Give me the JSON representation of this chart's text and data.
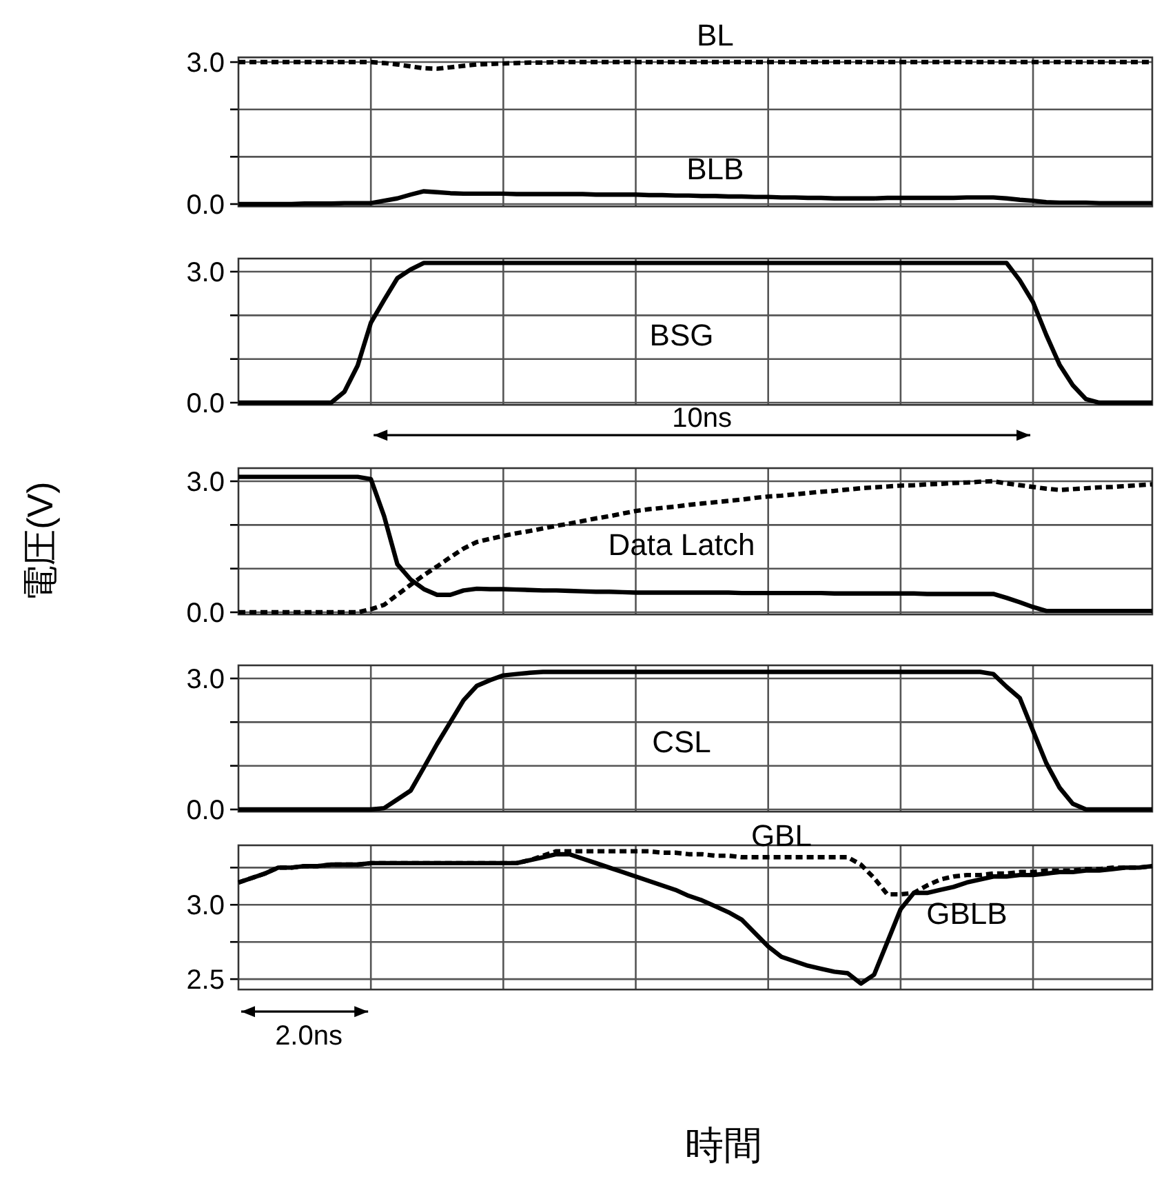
{
  "chart_data": [
    {
      "type": "line",
      "categories": [
        null,
        null,
        null,
        null,
        null,
        null,
        null,
        null,
        null,
        null,
        null,
        null,
        null,
        null,
        null,
        null,
        null,
        null,
        null,
        null,
        null,
        null,
        null,
        null,
        null,
        null,
        null,
        null,
        null,
        null,
        null,
        null,
        null,
        null,
        null,
        null,
        null,
        null,
        null,
        null,
        null,
        null,
        null,
        null,
        null,
        null,
        null,
        null,
        null,
        null,
        null,
        null,
        null,
        null,
        null,
        null,
        null,
        null,
        null,
        null,
        null,
        null,
        null,
        null,
        null,
        null,
        null,
        null,
        null,
        null
      ],
      "ylim": [
        -0.05,
        3.1
      ],
      "yticks": [
        {
          "value": 0,
          "label": "0.0"
        },
        {
          "value": 1,
          "label": null
        },
        {
          "value": 2,
          "label": null
        },
        {
          "value": 3,
          "label": "3.0"
        }
      ],
      "grid": true,
      "tick_labels": "y",
      "series": [
        {
          "name": "BL",
          "color": "#000000",
          "line_style": "dashed",
          "values": [
            3.0,
            3.0,
            3.0,
            3.0,
            3.0,
            3.0,
            3.0,
            3.0,
            3.0,
            3.0,
            3.0,
            2.98,
            2.95,
            2.91,
            2.87,
            2.86,
            2.89,
            2.92,
            2.95,
            2.96,
            2.97,
            2.98,
            2.99,
            2.99,
            3.0,
            3.0,
            3.0,
            3.0,
            3.0,
            3.0,
            3.0,
            3.0,
            3.0,
            3.0,
            3.0,
            3.0,
            3.0,
            3.0,
            3.0,
            3.0,
            3.0,
            3.0,
            3.0,
            3.0,
            3.0,
            3.0,
            3.0,
            3.0,
            3.0,
            3.0,
            3.0,
            3.0,
            3.0,
            3.0,
            3.0,
            3.0,
            3.0,
            3.0,
            3.0,
            3.0,
            3.0,
            3.0,
            3.0,
            3.0,
            3.0,
            3.0,
            3.0,
            3.0,
            3.0,
            3.0
          ]
        },
        {
          "name": "BLB",
          "color": "#000000",
          "line_style": "solid",
          "values": [
            0,
            0,
            0,
            0,
            0,
            0.01,
            0.01,
            0.01,
            0.02,
            0.02,
            0.02,
            0.07,
            0.12,
            0.2,
            0.27,
            0.25,
            0.23,
            0.22,
            0.22,
            0.22,
            0.22,
            0.21,
            0.21,
            0.21,
            0.21,
            0.21,
            0.21,
            0.2,
            0.2,
            0.2,
            0.2,
            0.19,
            0.19,
            0.18,
            0.18,
            0.17,
            0.17,
            0.16,
            0.16,
            0.15,
            0.15,
            0.14,
            0.14,
            0.13,
            0.13,
            0.12,
            0.12,
            0.12,
            0.12,
            0.13,
            0.13,
            0.13,
            0.13,
            0.13,
            0.13,
            0.14,
            0.14,
            0.14,
            0.12,
            0.09,
            0.07,
            0.04,
            0.03,
            0.03,
            0.03,
            0.02,
            0.02,
            0.02,
            0.02,
            0.02
          ]
        }
      ]
    },
    {
      "type": "line",
      "title": "BSG",
      "categories": [
        null,
        null,
        null,
        null,
        null,
        null,
        null,
        null,
        null,
        null,
        null,
        null,
        null,
        null,
        null,
        null,
        null,
        null,
        null,
        null,
        null,
        null,
        null,
        null,
        null,
        null,
        null,
        null,
        null,
        null,
        null,
        null,
        null,
        null,
        null,
        null,
        null,
        null,
        null,
        null,
        null,
        null,
        null,
        null,
        null,
        null,
        null,
        null,
        null,
        null,
        null,
        null,
        null,
        null,
        null,
        null,
        null,
        null,
        null,
        null,
        null,
        null,
        null,
        null,
        null,
        null,
        null,
        null,
        null,
        null
      ],
      "ylim": [
        -0.05,
        3.3
      ],
      "yticks": [
        {
          "value": 0,
          "label": "0.0"
        },
        {
          "value": 1,
          "label": null
        },
        {
          "value": 2,
          "label": null
        },
        {
          "value": 3,
          "label": "3.0"
        }
      ],
      "grid": true,
      "tick_labels": "y",
      "annotations": [
        "10ns"
      ],
      "series": [
        {
          "color": "#000000",
          "line_style": "solid",
          "values": [
            0,
            0,
            0,
            0,
            0,
            0,
            0,
            0,
            0.25,
            0.85,
            1.83,
            2.35,
            2.85,
            3.05,
            3.2,
            3.2,
            3.2,
            3.2,
            3.2,
            3.2,
            3.2,
            3.2,
            3.2,
            3.2,
            3.2,
            3.2,
            3.2,
            3.2,
            3.2,
            3.2,
            3.2,
            3.2,
            3.2,
            3.2,
            3.2,
            3.2,
            3.2,
            3.2,
            3.2,
            3.2,
            3.2,
            3.2,
            3.2,
            3.2,
            3.2,
            3.2,
            3.2,
            3.2,
            3.2,
            3.2,
            3.2,
            3.2,
            3.2,
            3.2,
            3.2,
            3.2,
            3.2,
            3.2,
            3.2,
            2.8,
            2.3,
            1.55,
            0.87,
            0.4,
            0.08,
            0,
            0,
            0,
            0,
            0
          ]
        }
      ]
    },
    {
      "type": "line",
      "title": "Data Latch",
      "ylabel": "電圧(V)",
      "categories": [
        null,
        null,
        null,
        null,
        null,
        null,
        null,
        null,
        null,
        null,
        null,
        null,
        null,
        null,
        null,
        null,
        null,
        null,
        null,
        null,
        null,
        null,
        null,
        null,
        null,
        null,
        null,
        null,
        null,
        null,
        null,
        null,
        null,
        null,
        null,
        null,
        null,
        null,
        null,
        null,
        null,
        null,
        null,
        null,
        null,
        null,
        null,
        null,
        null,
        null,
        null,
        null,
        null,
        null,
        null,
        null,
        null,
        null,
        null,
        null,
        null,
        null,
        null,
        null,
        null,
        null,
        null,
        null,
        null,
        null
      ],
      "ylim": [
        -0.05,
        3.3
      ],
      "yticks": [
        {
          "value": 0,
          "label": "0.0"
        },
        {
          "value": 1,
          "label": null
        },
        {
          "value": 2,
          "label": null
        },
        {
          "value": 3,
          "label": "3.0"
        }
      ],
      "grid": true,
      "tick_labels": "y",
      "series": [
        {
          "color": "#000000",
          "line_style": "solid",
          "values": [
            3.1,
            3.1,
            3.1,
            3.1,
            3.1,
            3.1,
            3.1,
            3.1,
            3.1,
            3.1,
            3.05,
            2.2,
            1.1,
            0.75,
            0.53,
            0.4,
            0.4,
            0.5,
            0.54,
            0.53,
            0.53,
            0.52,
            0.51,
            0.5,
            0.5,
            0.49,
            0.48,
            0.47,
            0.47,
            0.46,
            0.45,
            0.45,
            0.45,
            0.45,
            0.45,
            0.45,
            0.45,
            0.45,
            0.44,
            0.44,
            0.44,
            0.44,
            0.44,
            0.44,
            0.44,
            0.43,
            0.43,
            0.43,
            0.43,
            0.43,
            0.43,
            0.43,
            0.42,
            0.42,
            0.42,
            0.42,
            0.42,
            0.42,
            0.33,
            0.23,
            0.12,
            0.03,
            0.03,
            0.03,
            0.03,
            0.03,
            0.03,
            0.03,
            0.03,
            0.03
          ]
        },
        {
          "color": "#000000",
          "line_style": "dashed",
          "values": [
            0,
            0,
            0,
            0,
            0,
            0,
            0,
            0,
            0,
            0,
            0.07,
            0.17,
            0.4,
            0.63,
            0.85,
            1.05,
            1.26,
            1.46,
            1.61,
            1.68,
            1.75,
            1.81,
            1.86,
            1.92,
            1.98,
            2.03,
            2.09,
            2.15,
            2.2,
            2.26,
            2.32,
            2.36,
            2.39,
            2.42,
            2.46,
            2.49,
            2.52,
            2.55,
            2.58,
            2.62,
            2.65,
            2.67,
            2.7,
            2.73,
            2.76,
            2.78,
            2.81,
            2.84,
            2.86,
            2.88,
            2.9,
            2.91,
            2.93,
            2.94,
            2.96,
            2.97,
            2.99,
            3.0,
            2.95,
            2.91,
            2.87,
            2.83,
            2.8,
            2.82,
            2.84,
            2.86,
            2.87,
            2.89,
            2.91,
            2.93
          ]
        }
      ]
    },
    {
      "type": "line",
      "title": "CSL",
      "categories": [
        null,
        null,
        null,
        null,
        null,
        null,
        null,
        null,
        null,
        null,
        null,
        null,
        null,
        null,
        null,
        null,
        null,
        null,
        null,
        null,
        null,
        null,
        null,
        null,
        null,
        null,
        null,
        null,
        null,
        null,
        null,
        null,
        null,
        null,
        null,
        null,
        null,
        null,
        null,
        null,
        null,
        null,
        null,
        null,
        null,
        null,
        null,
        null,
        null,
        null,
        null,
        null,
        null,
        null,
        null,
        null,
        null,
        null,
        null,
        null,
        null,
        null,
        null,
        null,
        null,
        null,
        null,
        null,
        null,
        null
      ],
      "ylim": [
        -0.05,
        3.3
      ],
      "yticks": [
        {
          "value": 0,
          "label": "0.0"
        },
        {
          "value": 1,
          "label": null
        },
        {
          "value": 2,
          "label": null
        },
        {
          "value": 3,
          "label": "3.0"
        }
      ],
      "grid": true,
      "tick_labels": "y",
      "series": [
        {
          "color": "#000000",
          "line_style": "solid",
          "values": [
            0,
            0,
            0,
            0,
            0,
            0,
            0,
            0,
            0,
            0,
            0,
            0.03,
            0.23,
            0.43,
            0.96,
            1.5,
            2.0,
            2.5,
            2.83,
            2.96,
            3.07,
            3.1,
            3.13,
            3.15,
            3.15,
            3.15,
            3.15,
            3.15,
            3.15,
            3.15,
            3.15,
            3.15,
            3.15,
            3.15,
            3.15,
            3.15,
            3.15,
            3.15,
            3.15,
            3.15,
            3.15,
            3.15,
            3.15,
            3.15,
            3.15,
            3.15,
            3.15,
            3.15,
            3.15,
            3.15,
            3.15,
            3.15,
            3.15,
            3.15,
            3.15,
            3.15,
            3.15,
            3.1,
            2.81,
            2.55,
            1.8,
            1.06,
            0.5,
            0.13,
            0,
            0,
            0,
            0,
            0,
            0
          ]
        }
      ]
    },
    {
      "type": "line",
      "xlabel": "時間",
      "categories": [
        null,
        null,
        null,
        null,
        null,
        null,
        null,
        null,
        null,
        null,
        null,
        null,
        null,
        null,
        null,
        null,
        null,
        null,
        null,
        null,
        null,
        null,
        null,
        null,
        null,
        null,
        null,
        null,
        null,
        null,
        null,
        null,
        null,
        null,
        null,
        null,
        null,
        null,
        null,
        null,
        null,
        null,
        null,
        null,
        null,
        null,
        null,
        null,
        null,
        null,
        null,
        null,
        null,
        null,
        null,
        null,
        null,
        null,
        null,
        null,
        null,
        null,
        null,
        null,
        null,
        null,
        null,
        null,
        null,
        null
      ],
      "ylim": [
        2.43,
        3.4
      ],
      "yticks": [
        {
          "value": 2.5,
          "label": "2.5"
        },
        {
          "value": 2.75,
          "label": null
        },
        {
          "value": 3,
          "label": "3.0"
        },
        {
          "value": 3.25,
          "label": null
        }
      ],
      "grid": true,
      "tick_labels": "y",
      "annotations": [
        "2.0ns"
      ],
      "series": [
        {
          "name": "GBL",
          "color": "#000000",
          "line_style": "dashed",
          "values": [
            3.15,
            3.18,
            3.21,
            3.25,
            3.25,
            3.26,
            3.26,
            3.27,
            3.27,
            3.27,
            3.28,
            3.28,
            3.28,
            3.28,
            3.28,
            3.28,
            3.28,
            3.28,
            3.28,
            3.28,
            3.28,
            3.28,
            3.3,
            3.33,
            3.36,
            3.36,
            3.36,
            3.36,
            3.36,
            3.36,
            3.36,
            3.36,
            3.35,
            3.35,
            3.34,
            3.34,
            3.33,
            3.33,
            3.32,
            3.32,
            3.32,
            3.32,
            3.32,
            3.32,
            3.32,
            3.32,
            3.32,
            3.27,
            3.18,
            3.07,
            3.07,
            3.08,
            3.13,
            3.17,
            3.19,
            3.2,
            3.2,
            3.21,
            3.21,
            3.22,
            3.22,
            3.23,
            3.23,
            3.23,
            3.24,
            3.24,
            3.25,
            3.25,
            3.25,
            3.26
          ]
        },
        {
          "name": "GBLB",
          "color": "#000000",
          "line_style": "solid",
          "values": [
            3.15,
            3.18,
            3.21,
            3.25,
            3.25,
            3.26,
            3.26,
            3.27,
            3.27,
            3.27,
            3.28,
            3.28,
            3.28,
            3.28,
            3.28,
            3.28,
            3.28,
            3.28,
            3.28,
            3.28,
            3.28,
            3.28,
            3.3,
            3.32,
            3.34,
            3.34,
            3.31,
            3.28,
            3.25,
            3.22,
            3.19,
            3.16,
            3.13,
            3.1,
            3.06,
            3.03,
            2.99,
            2.95,
            2.9,
            2.81,
            2.72,
            2.65,
            2.62,
            2.59,
            2.57,
            2.55,
            2.54,
            2.47,
            2.53,
            2.75,
            2.97,
            3.08,
            3.08,
            3.1,
            3.12,
            3.15,
            3.17,
            3.19,
            3.19,
            3.2,
            3.2,
            3.21,
            3.22,
            3.22,
            3.23,
            3.23,
            3.24,
            3.25,
            3.25,
            3.26
          ]
        }
      ]
    }
  ]
}
